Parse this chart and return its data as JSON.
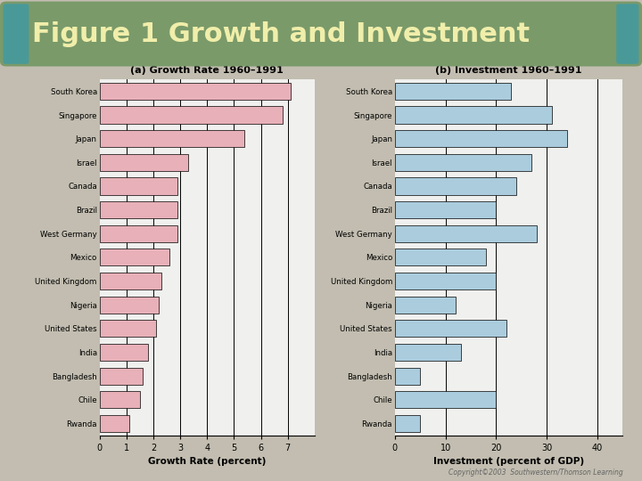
{
  "title": "Figure 1 Growth and Investment",
  "title_bg_color": "#7a9a6a",
  "title_text_color": "#f0eeaa",
  "background_color": "#c2bdb0",
  "countries": [
    "South Korea",
    "Singapore",
    "Japan",
    "Israel",
    "Canada",
    "Brazil",
    "West Germany",
    "Mexico",
    "United Kingdom",
    "Nigeria",
    "United States",
    "India",
    "Bangladesh",
    "Chile",
    "Rwanda"
  ],
  "growth_values": [
    7.1,
    6.8,
    5.4,
    3.3,
    2.9,
    2.9,
    2.9,
    2.6,
    2.3,
    2.2,
    2.1,
    1.8,
    1.6,
    1.5,
    1.1
  ],
  "investment_values": [
    23,
    31,
    34,
    27,
    24,
    20,
    28,
    18,
    20,
    12,
    22,
    13,
    5,
    20,
    5
  ],
  "growth_bar_color": "#e8b0b8",
  "investment_bar_color": "#aaccdd",
  "growth_xlabel": "Growth Rate (percent)",
  "investment_xlabel": "Investment (percent of GDP)",
  "growth_title": "(a) Growth Rate 1960–1991",
  "investment_title": "(b) Investment 1960–1991",
  "growth_xlim": [
    0,
    8
  ],
  "investment_xlim": [
    0,
    45
  ],
  "growth_xticks": [
    0,
    1,
    2,
    3,
    4,
    5,
    6,
    7
  ],
  "investment_xticks": [
    0,
    10,
    20,
    30,
    40
  ],
  "copyright_text": "Copyright©2003  Southwestern/Thomson Learning",
  "bar_edge_color": "#000000",
  "bar_linewidth": 0.5,
  "teal_color": "#4a9999"
}
